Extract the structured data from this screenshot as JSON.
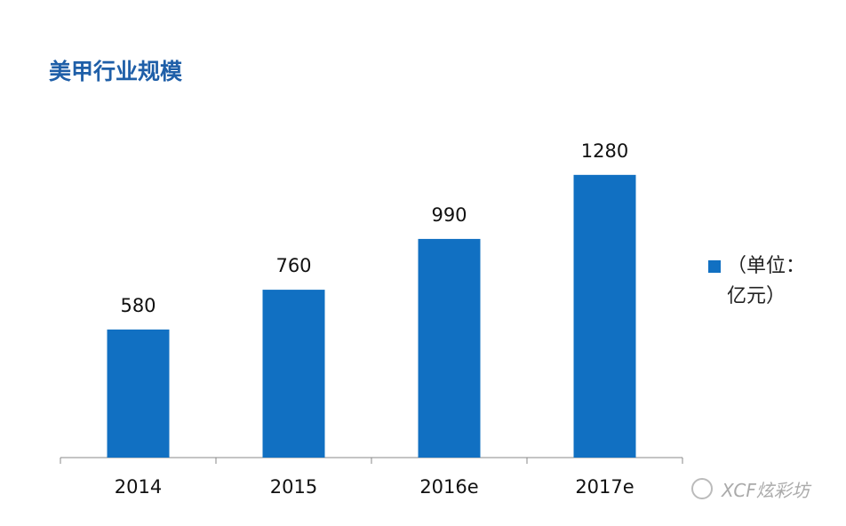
{
  "chart_data": {
    "type": "bar",
    "title": "美甲行业规模",
    "categories": [
      "2014",
      "2015",
      "2016e",
      "2017e"
    ],
    "series": [
      {
        "name": "（单位：亿元）",
        "color": "#1170c2",
        "values": [
          580,
          760,
          990,
          1280
        ]
      }
    ],
    "ylim": [
      0,
      1400
    ],
    "legend": "right"
  },
  "watermark": "XCF炫彩坊"
}
